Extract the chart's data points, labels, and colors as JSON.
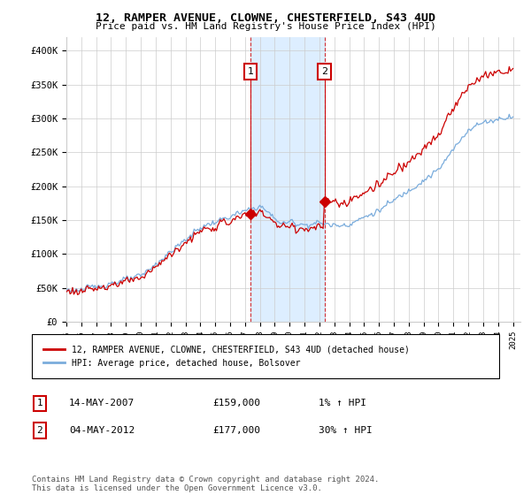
{
  "title": "12, RAMPER AVENUE, CLOWNE, CHESTERFIELD, S43 4UD",
  "subtitle": "Price paid vs. HM Land Registry's House Price Index (HPI)",
  "ylabel_ticks": [
    "£0",
    "£50K",
    "£100K",
    "£150K",
    "£200K",
    "£250K",
    "£300K",
    "£350K",
    "£400K"
  ],
  "ytick_values": [
    0,
    50000,
    100000,
    150000,
    200000,
    250000,
    300000,
    350000,
    400000
  ],
  "ylim": [
    0,
    420000
  ],
  "xlim_start": 1995.0,
  "xlim_end": 2025.5,
  "xtick_years": [
    1995,
    1996,
    1997,
    1998,
    1999,
    2000,
    2001,
    2002,
    2003,
    2004,
    2005,
    2006,
    2007,
    2008,
    2009,
    2010,
    2011,
    2012,
    2013,
    2014,
    2015,
    2016,
    2017,
    2018,
    2019,
    2020,
    2021,
    2022,
    2023,
    2024,
    2025
  ],
  "purchase_color": "#cc0000",
  "hpi_color": "#7aacdc",
  "purchase_label": "12, RAMPER AVENUE, CLOWNE, CHESTERFIELD, S43 4UD (detached house)",
  "hpi_label": "HPI: Average price, detached house, Bolsover",
  "sale1_year": 2007.37,
  "sale1_price": 159000,
  "sale1_label": "1",
  "sale2_year": 2012.34,
  "sale2_price": 177000,
  "sale2_label": "2",
  "annotation1_date": "14-MAY-2007",
  "annotation1_price": "£159,000",
  "annotation1_hpi": "1% ↑ HPI",
  "annotation2_date": "04-MAY-2012",
  "annotation2_price": "£177,000",
  "annotation2_hpi": "30% ↑ HPI",
  "footer": "Contains HM Land Registry data © Crown copyright and database right 2024.\nThis data is licensed under the Open Government Licence v3.0.",
  "background_color": "#ffffff",
  "plot_bg_color": "#ffffff",
  "grid_color": "#cccccc",
  "shaded_region_color": "#ddeeff"
}
